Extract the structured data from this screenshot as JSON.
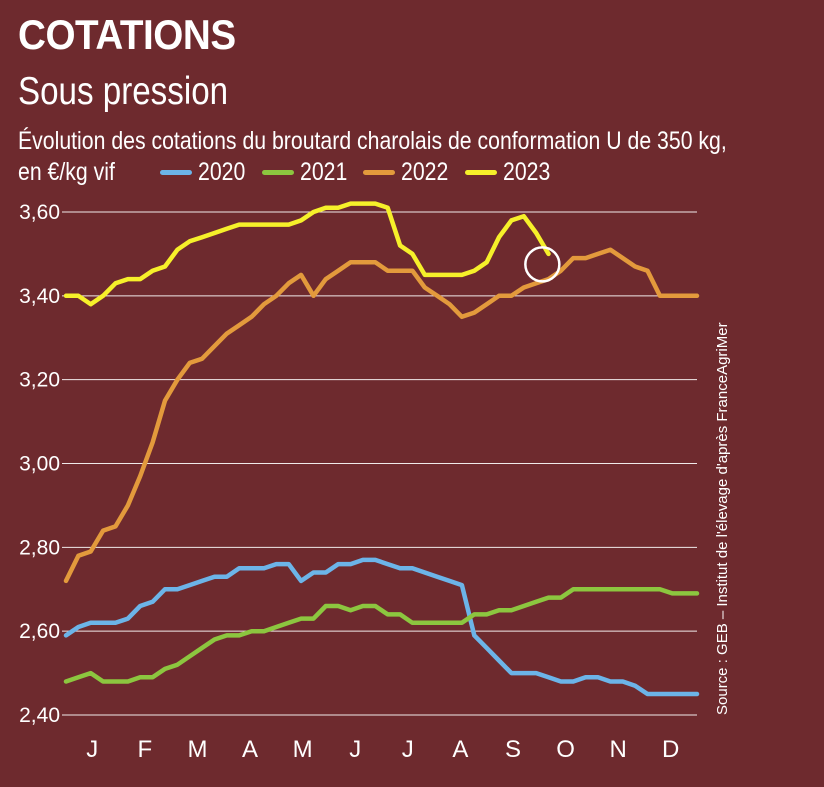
{
  "header": {
    "title": "COTATIONS",
    "subtitle": "Sous pression",
    "description": "Évolution des cotations du broutard charolais de conformation U de 350 kg,",
    "unit": "en €/kg vif"
  },
  "source": "Source : GEB – Institut de l'élevage d'après FranceAgriMer",
  "chart_data": {
    "type": "line",
    "title": "Sous pression",
    "ylabel": "€/kg vif",
    "ylim": [
      2.4,
      3.6
    ],
    "yticks": [
      2.4,
      2.6,
      2.8,
      3.0,
      3.2,
      3.4,
      3.6
    ],
    "ytick_labels": [
      "2,40",
      "2,60",
      "2,80",
      "3,00",
      "3,20",
      "3,40",
      "3,60"
    ],
    "months": [
      "J",
      "F",
      "M",
      "A",
      "M",
      "J",
      "J",
      "A",
      "S",
      "O",
      "N",
      "D"
    ],
    "x_unit": "week",
    "xlim": [
      1,
      52
    ],
    "grid": true,
    "legend_position": "top",
    "annotation": "circle at week 40, 2023 series meeting 2022 series",
    "series": [
      {
        "name": "2020",
        "color": "#6cb4e8",
        "x": [
          1,
          2,
          3,
          4,
          5,
          6,
          7,
          8,
          9,
          10,
          11,
          12,
          13,
          14,
          15,
          16,
          17,
          18,
          19,
          20,
          21,
          22,
          23,
          24,
          25,
          26,
          27,
          28,
          29,
          30,
          31,
          32,
          33,
          34,
          35,
          36,
          37,
          38,
          39,
          40,
          41,
          42,
          43,
          44,
          45,
          46,
          47,
          48,
          49,
          50,
          51,
          52
        ],
        "y": [
          2.59,
          2.61,
          2.62,
          2.62,
          2.62,
          2.63,
          2.66,
          2.67,
          2.7,
          2.7,
          2.71,
          2.72,
          2.73,
          2.73,
          2.75,
          2.75,
          2.75,
          2.76,
          2.76,
          2.72,
          2.74,
          2.74,
          2.76,
          2.76,
          2.77,
          2.77,
          2.76,
          2.75,
          2.75,
          2.74,
          2.73,
          2.72,
          2.71,
          2.59,
          2.56,
          2.53,
          2.5,
          2.5,
          2.5,
          2.49,
          2.48,
          2.48,
          2.49,
          2.49,
          2.48,
          2.48,
          2.47,
          2.45,
          2.45,
          2.45,
          2.45,
          2.45
        ]
      },
      {
        "name": "2021",
        "color": "#8cc63f",
        "x": [
          1,
          2,
          3,
          4,
          5,
          6,
          7,
          8,
          9,
          10,
          11,
          12,
          13,
          14,
          15,
          16,
          17,
          18,
          19,
          20,
          21,
          22,
          23,
          24,
          25,
          26,
          27,
          28,
          29,
          30,
          31,
          32,
          33,
          34,
          35,
          36,
          37,
          38,
          39,
          40,
          41,
          42,
          43,
          44,
          45,
          46,
          47,
          48,
          49,
          50,
          51,
          52
        ],
        "y": [
          2.48,
          2.49,
          2.5,
          2.48,
          2.48,
          2.48,
          2.49,
          2.49,
          2.51,
          2.52,
          2.54,
          2.56,
          2.58,
          2.59,
          2.59,
          2.6,
          2.6,
          2.61,
          2.62,
          2.63,
          2.63,
          2.66,
          2.66,
          2.65,
          2.66,
          2.66,
          2.64,
          2.64,
          2.62,
          2.62,
          2.62,
          2.62,
          2.62,
          2.64,
          2.64,
          2.65,
          2.65,
          2.66,
          2.67,
          2.68,
          2.68,
          2.7,
          2.7,
          2.7,
          2.7,
          2.7,
          2.7,
          2.7,
          2.7,
          2.69,
          2.69,
          2.69
        ]
      },
      {
        "name": "2022",
        "color": "#e39a3c",
        "x": [
          1,
          2,
          3,
          4,
          5,
          6,
          7,
          8,
          9,
          10,
          11,
          12,
          13,
          14,
          15,
          16,
          17,
          18,
          19,
          20,
          21,
          22,
          23,
          24,
          25,
          26,
          27,
          28,
          29,
          30,
          31,
          32,
          33,
          34,
          35,
          36,
          37,
          38,
          39,
          40,
          41,
          42,
          43,
          44,
          45,
          46,
          47,
          48,
          49,
          50,
          51,
          52
        ],
        "y": [
          2.72,
          2.78,
          2.79,
          2.84,
          2.85,
          2.9,
          2.97,
          3.05,
          3.15,
          3.2,
          3.24,
          3.25,
          3.28,
          3.31,
          3.33,
          3.35,
          3.38,
          3.4,
          3.43,
          3.45,
          3.4,
          3.44,
          3.46,
          3.48,
          3.48,
          3.48,
          3.46,
          3.46,
          3.46,
          3.42,
          3.4,
          3.38,
          3.35,
          3.36,
          3.38,
          3.4,
          3.4,
          3.42,
          3.43,
          3.44,
          3.46,
          3.49,
          3.49,
          3.5,
          3.51,
          3.49,
          3.47,
          3.46,
          3.4,
          3.4,
          3.4,
          3.4
        ]
      },
      {
        "name": "2023",
        "color": "#f6f02a",
        "x": [
          1,
          2,
          3,
          4,
          5,
          6,
          7,
          8,
          9,
          10,
          11,
          12,
          13,
          14,
          15,
          16,
          17,
          18,
          19,
          20,
          21,
          22,
          23,
          24,
          25,
          26,
          27,
          28,
          29,
          30,
          31,
          32,
          33,
          34,
          35,
          36,
          37,
          38,
          39,
          40
        ],
        "y": [
          3.4,
          3.4,
          3.38,
          3.4,
          3.43,
          3.44,
          3.44,
          3.46,
          3.47,
          3.51,
          3.53,
          3.54,
          3.55,
          3.56,
          3.57,
          3.57,
          3.57,
          3.57,
          3.57,
          3.58,
          3.6,
          3.61,
          3.61,
          3.62,
          3.62,
          3.62,
          3.61,
          3.52,
          3.5,
          3.45,
          3.45,
          3.45,
          3.45,
          3.46,
          3.48,
          3.54,
          3.58,
          3.59,
          3.55,
          3.5
        ]
      }
    ]
  }
}
